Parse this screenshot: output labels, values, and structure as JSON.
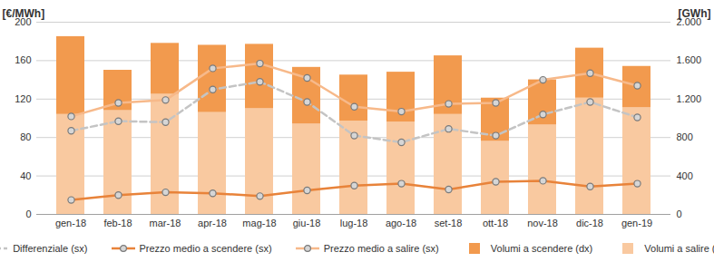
{
  "chart_data": {
    "type": "bar",
    "categories": [
      "gen-18",
      "feb-18",
      "mar-18",
      "apr-18",
      "mag-18",
      "giu-18",
      "lug-18",
      "ago-18",
      "set-18",
      "ott-18",
      "nov-18",
      "dic-18",
      "gen-19"
    ],
    "y_label": "[€/MWh]",
    "y2_label": "[GWh]",
    "ylim": [
      0,
      200
    ],
    "yticks": [
      0,
      40,
      80,
      120,
      160,
      200
    ],
    "y2lim": [
      0,
      2000
    ],
    "y2ticks": [
      0,
      400,
      800,
      {
        "value": 1200,
        "label": "1.200"
      },
      {
        "value": 1600,
        "label": "1.600"
      },
      {
        "value": 2000,
        "label": "2.000"
      }
    ],
    "grid": true,
    "stacked": true,
    "legend": "bottom",
    "series": [
      {
        "name": "Differenziale (sx)",
        "type": "line",
        "color": "#c4c4c4",
        "line_style": "dashed",
        "marker": "circle",
        "values": [
          87,
          97,
          96,
          130,
          138,
          117,
          82,
          75,
          89,
          82,
          104,
          117,
          101
        ]
      },
      {
        "name": "Prezzo medio a scendere (sx)",
        "type": "line",
        "color": "#e8833a",
        "line_style": "solid",
        "marker": "circle",
        "values": [
          15,
          20,
          23,
          22,
          19,
          25,
          30,
          32,
          26,
          34,
          35,
          29,
          32
        ]
      },
      {
        "name": "Prezzo medio a salire (sx)",
        "type": "line",
        "color": "#f7b98a",
        "line_style": "solid",
        "marker": "circle",
        "values": [
          102,
          116,
          119,
          152,
          157,
          142,
          112,
          107,
          115,
          116,
          140,
          147,
          134
        ]
      },
      {
        "name": "Volumi a scendere (dx)",
        "type": "bar",
        "axis": "y2",
        "color": "#f29a4e",
        "values": [
          810,
          420,
          530,
          700,
          670,
          590,
          480,
          520,
          610,
          450,
          470,
          520,
          430
        ]
      },
      {
        "name": "Volumi a salire (dx)",
        "type": "bar",
        "axis": "y2",
        "color": "#f9c9a0",
        "values": [
          1040,
          1080,
          1250,
          1060,
          1100,
          940,
          970,
          960,
          1040,
          760,
          930,
          1210,
          1110
        ]
      }
    ]
  }
}
